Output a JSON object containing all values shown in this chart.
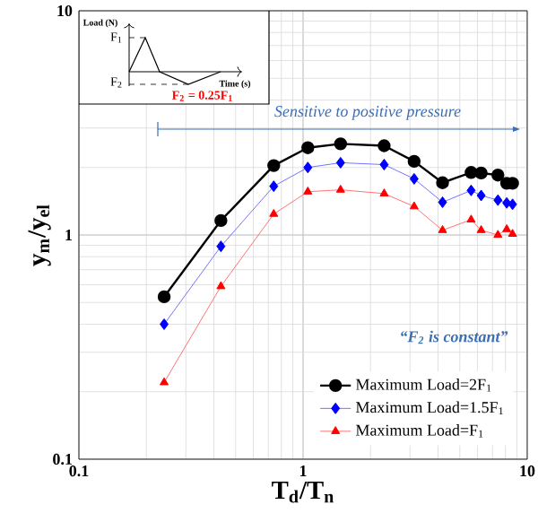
{
  "chart_data": {
    "type": "line",
    "xlabel": "T$_{d}$/T$_{n}$",
    "ylabel": "y$_{m}$/y$_{el}$",
    "x": [
      0.24,
      0.43,
      0.74,
      1.05,
      1.47,
      2.3,
      3.13,
      4.19,
      5.62,
      6.23,
      7.4,
      8.1,
      8.6
    ],
    "series": [
      {
        "name": "Maximum Load=2F$_{1}$",
        "color": "#000000",
        "marker": "circle",
        "values": [
          0.53,
          1.16,
          2.04,
          2.45,
          2.55,
          2.5,
          2.13,
          1.71,
          1.9,
          1.89,
          1.85,
          1.7,
          1.7
        ]
      },
      {
        "name": "Maximum Load=1.5F$_{1}$",
        "color": "#0000ff",
        "marker": "diamond",
        "values": [
          0.4,
          0.89,
          1.65,
          2.0,
          2.1,
          2.06,
          1.78,
          1.4,
          1.58,
          1.5,
          1.43,
          1.39,
          1.37
        ]
      },
      {
        "name": "Maximum Load=F$_{1}$",
        "color": "#ff0000",
        "marker": "triangle",
        "values": [
          0.22,
          0.59,
          1.24,
          1.56,
          1.59,
          1.53,
          1.34,
          1.05,
          1.17,
          1.05,
          1.0,
          1.06,
          1.01
        ]
      }
    ],
    "xlim": [
      0.1,
      10
    ],
    "ylim": [
      0.1,
      10
    ],
    "xticks": [
      0.1,
      1,
      10
    ],
    "yticks": [
      0.1,
      1,
      10
    ],
    "log": "xy",
    "grid": true,
    "legend": "bottom right",
    "annotations": [
      "Sensitive to positive pressure",
      "“F$_{2}$ is constant”",
      "Load (N)",
      "F$_{1}$",
      "F$_{2}$",
      "Time (s)",
      "F$_{2}$ = 0.25F$_{1}$"
    ]
  }
}
